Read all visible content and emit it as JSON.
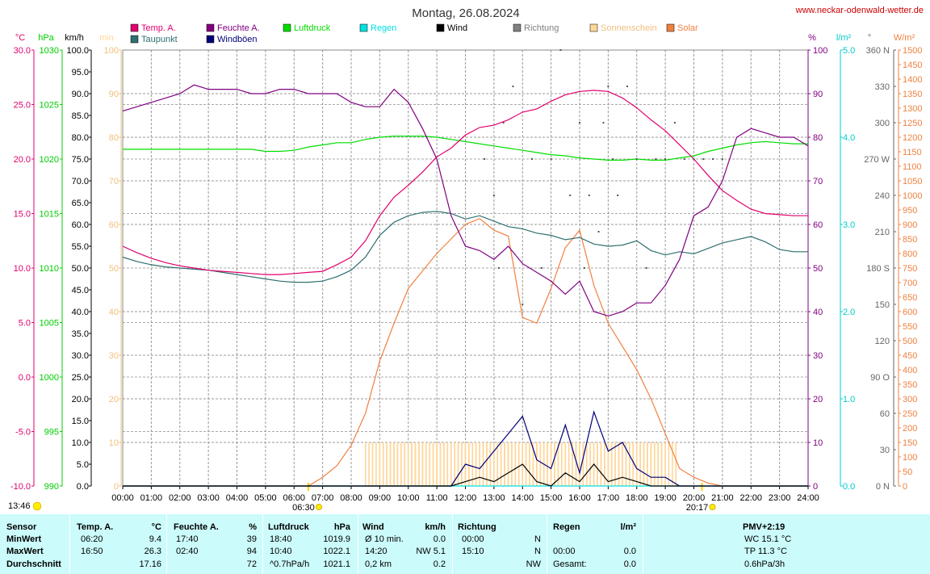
{
  "title": "Montag, 26.08.2024",
  "site": "www.neckar-odenwald-wetter.de",
  "timestamp": "13:46",
  "legend": [
    {
      "label": "Temp. A.",
      "color": "#e0006e"
    },
    {
      "label": "Taupunkt",
      "color": "#2e6f6f"
    },
    {
      "label": "Feuchte A.",
      "color": "#800080"
    },
    {
      "label": "Windböen",
      "color": "#00007a"
    },
    {
      "label": "Luftdruck",
      "color": "#00dd00"
    },
    {
      "label": "Regen",
      "color": "#00e0e0"
    },
    {
      "label": "Wind",
      "color": "#000000"
    },
    {
      "label": "Richtung",
      "color": "#808080"
    },
    {
      "label": "Sonnenschein",
      "color": "#ffd699"
    },
    {
      "label": "Solar",
      "color": "#f08040"
    }
  ],
  "axis_units": {
    "temp": "°C",
    "pressure": "hPa",
    "wind": "km/h",
    "sun": "min",
    "humidity": "%",
    "rain": "l/m²",
    "direction": "°",
    "solar": "W/m²"
  },
  "sunrise": "06:30",
  "sunset": "20:17",
  "chart_data": {
    "type": "line",
    "x": [
      "00:00",
      "00:30",
      "01:00",
      "01:30",
      "02:00",
      "02:30",
      "03:00",
      "03:30",
      "04:00",
      "04:30",
      "05:00",
      "05:30",
      "06:00",
      "06:30",
      "07:00",
      "07:30",
      "08:00",
      "08:30",
      "09:00",
      "09:30",
      "10:00",
      "10:30",
      "11:00",
      "11:30",
      "12:00",
      "12:30",
      "13:00",
      "13:30",
      "14:00",
      "14:30",
      "15:00",
      "15:30",
      "16:00",
      "16:30",
      "17:00",
      "17:30",
      "18:00",
      "18:30",
      "19:00",
      "19:30",
      "20:00",
      "20:30",
      "21:00",
      "21:30",
      "22:00",
      "22:30",
      "23:00",
      "23:30",
      "24:00"
    ],
    "xlabels": [
      "00:00",
      "01:00",
      "02:00",
      "03:00",
      "04:00",
      "05:00",
      "06:00",
      "07:00",
      "08:00",
      "09:00",
      "10:00",
      "11:00",
      "12:00",
      "13:00",
      "14:00",
      "15:00",
      "16:00",
      "17:00",
      "18:00",
      "19:00",
      "20:00",
      "21:00",
      "22:00",
      "23:00",
      "24:00"
    ],
    "axes": {
      "temp": {
        "label": "°C",
        "min": -10,
        "max": 30,
        "ticks": [
          "30.0",
          "25.0",
          "20.0",
          "15.0",
          "10.0",
          "5.0",
          "0.0",
          "-5.0",
          "-10.0"
        ]
      },
      "pressure": {
        "label": "hPa",
        "min": 990,
        "max": 1030,
        "ticks": [
          "1030",
          "1025",
          "1020",
          "1015",
          "1010",
          "1005",
          "1000",
          "995",
          "990"
        ]
      },
      "wind": {
        "label": "km/h",
        "min": 0,
        "max": 100,
        "ticks": [
          "100.0",
          "95.0",
          "90.0",
          "85.0",
          "80.0",
          "75.0",
          "70.0",
          "65.0",
          "60.0",
          "55.0",
          "50.0",
          "45.0",
          "40.0",
          "35.0",
          "30.0",
          "25.0",
          "20.0",
          "15.0",
          "10.0",
          "5.0",
          "0.0"
        ]
      },
      "sun": {
        "label": "min",
        "min": 0,
        "max": 100,
        "ticks": [
          "100",
          "90",
          "80",
          "70",
          "60",
          "50",
          "40",
          "30",
          "20",
          "10",
          "0"
        ]
      },
      "humidity": {
        "label": "%",
        "min": 0,
        "max": 100,
        "ticks": [
          "100",
          "90",
          "80",
          "70",
          "60",
          "50",
          "40",
          "30",
          "20",
          "10",
          "0"
        ]
      },
      "rain": {
        "label": "l/m²",
        "min": 0,
        "max": 5,
        "ticks": [
          "5.0",
          "4.0",
          "3.0",
          "2.0",
          "1.0",
          "0.0"
        ]
      },
      "direction": {
        "label": "°",
        "min": 0,
        "max": 360,
        "ticks": [
          "360 N",
          "330",
          "300",
          "270 W",
          "240",
          "210",
          "180 S",
          "150",
          "120",
          "90 O",
          "60",
          "30",
          "0 N"
        ]
      },
      "solar": {
        "label": "W/m²",
        "min": 0,
        "max": 1500,
        "ticks": [
          "1500",
          "1450",
          "1400",
          "1350",
          "1300",
          "1250",
          "1200",
          "1150",
          "1100",
          "1050",
          "1000",
          "950",
          "900",
          "850",
          "800",
          "750",
          "700",
          "650",
          "600",
          "550",
          "500",
          "450",
          "400",
          "350",
          "300",
          "250",
          "200",
          "150",
          "100",
          "50",
          "0"
        ]
      }
    },
    "series": [
      {
        "name": "Temp. A.",
        "axis": "temp",
        "values": [
          12.0,
          11.4,
          10.9,
          10.5,
          10.2,
          10.0,
          9.8,
          9.7,
          9.6,
          9.5,
          9.4,
          9.4,
          9.5,
          9.6,
          9.7,
          10.3,
          11.0,
          12.5,
          14.8,
          16.5,
          17.6,
          18.8,
          20.2,
          21.0,
          22.2,
          22.9,
          23.1,
          23.6,
          24.3,
          24.6,
          25.3,
          25.9,
          26.2,
          26.3,
          26.2,
          25.6,
          24.7,
          23.6,
          22.6,
          21.3,
          20.0,
          18.5,
          17.1,
          16.2,
          15.4,
          15.0,
          14.9,
          14.8,
          14.8
        ]
      },
      {
        "name": "Taupunkt",
        "axis": "temp",
        "values": [
          11.0,
          10.6,
          10.3,
          10.1,
          10.0,
          9.9,
          9.8,
          9.6,
          9.4,
          9.2,
          9.0,
          8.8,
          8.7,
          8.7,
          8.8,
          9.2,
          9.8,
          11.0,
          13.0,
          14.2,
          14.8,
          15.1,
          15.2,
          15.0,
          14.5,
          14.8,
          14.3,
          13.8,
          13.6,
          13.2,
          13.0,
          12.6,
          12.8,
          12.2,
          12.0,
          12.1,
          12.5,
          11.6,
          11.2,
          11.5,
          11.3,
          11.8,
          12.3,
          12.6,
          12.9,
          12.4,
          11.7,
          11.5,
          11.5
        ]
      },
      {
        "name": "Feuchte A.",
        "axis": "humidity",
        "values": [
          86,
          87,
          88,
          89,
          90,
          92,
          91,
          91,
          91,
          90,
          90,
          91,
          91,
          90,
          90,
          90,
          88,
          87,
          87,
          91,
          88,
          82,
          75,
          62,
          55,
          54,
          52,
          55,
          51,
          49,
          47,
          44,
          47,
          40,
          39,
          40,
          42,
          42,
          46,
          52,
          62,
          64,
          70,
          80,
          82,
          81,
          80,
          80,
          78
        ]
      },
      {
        "name": "Luftdruck",
        "axis": "pressure",
        "values": [
          1020.9,
          1020.9,
          1020.9,
          1020.9,
          1020.9,
          1020.9,
          1020.9,
          1020.9,
          1020.9,
          1020.9,
          1020.7,
          1020.7,
          1020.8,
          1021.1,
          1021.3,
          1021.5,
          1021.5,
          1021.8,
          1022.0,
          1022.1,
          1022.1,
          1022.1,
          1022.0,
          1021.8,
          1021.6,
          1021.4,
          1021.2,
          1021.0,
          1020.8,
          1020.6,
          1020.4,
          1020.3,
          1020.1,
          1020.0,
          1019.9,
          1019.9,
          1020.0,
          1019.9,
          1019.9,
          1020.1,
          1020.3,
          1020.7,
          1021.0,
          1021.3,
          1021.5,
          1021.6,
          1021.5,
          1021.4,
          1021.4
        ]
      },
      {
        "name": "Solar",
        "axis": "solar",
        "values": [
          0,
          0,
          0,
          0,
          0,
          0,
          0,
          0,
          0,
          0,
          0,
          0,
          0,
          0,
          30,
          70,
          140,
          250,
          430,
          560,
          680,
          740,
          800,
          850,
          900,
          920,
          880,
          860,
          580,
          560,
          680,
          820,
          880,
          690,
          560,
          480,
          400,
          300,
          180,
          60,
          30,
          10,
          0,
          0,
          0,
          0,
          0,
          0,
          0
        ]
      },
      {
        "name": "Windböen",
        "axis": "wind",
        "values": [
          0,
          0,
          0,
          0,
          0,
          0,
          0,
          0,
          0,
          0,
          0,
          0,
          0,
          0,
          0,
          0,
          0,
          0,
          0,
          0,
          0,
          0,
          0,
          0,
          5,
          4,
          8,
          12,
          16,
          6,
          4,
          14,
          3,
          17,
          8,
          10,
          4,
          2,
          2,
          0,
          0,
          0,
          0,
          0,
          0,
          0,
          0,
          0,
          0
        ]
      },
      {
        "name": "Wind",
        "axis": "wind",
        "values": [
          0,
          0,
          0,
          0,
          0,
          0,
          0,
          0,
          0,
          0,
          0,
          0,
          0,
          0,
          0,
          0,
          0,
          0,
          0,
          0,
          0,
          0,
          0,
          0,
          1,
          2,
          1,
          3,
          5,
          1,
          0,
          3,
          1,
          5,
          1,
          2,
          1,
          0,
          0,
          0,
          0,
          0,
          0,
          0,
          0,
          0,
          0,
          0,
          0
        ]
      },
      {
        "name": "Sonnenschein",
        "axis": "sun",
        "values": [
          0,
          0,
          0,
          0,
          0,
          0,
          0,
          0,
          0,
          0,
          0,
          0,
          0,
          0,
          0,
          0,
          0,
          10,
          10,
          10,
          10,
          10,
          10,
          10,
          10,
          10,
          10,
          10,
          10,
          10,
          10,
          10,
          10,
          10,
          10,
          10,
          10,
          10,
          0,
          0,
          0,
          0,
          0,
          0,
          0,
          0,
          0,
          0,
          0
        ]
      },
      {
        "name": "Regen",
        "axis": "rain",
        "values": [
          0,
          0,
          0,
          0,
          0,
          0,
          0,
          0,
          0,
          0,
          0,
          0,
          0,
          0,
          0,
          0,
          0,
          0,
          0,
          0,
          0,
          0,
          0,
          0,
          0,
          0,
          0,
          0,
          0,
          0,
          0,
          0,
          0,
          0,
          0,
          0,
          0,
          0,
          0,
          0,
          0,
          0,
          0,
          0,
          0,
          0,
          0,
          0,
          0
        ]
      }
    ],
    "direction_points": {
      "axis": "direction",
      "x": [
        "12:40",
        "13:00",
        "13:10",
        "13:20",
        "13:40",
        "14:00",
        "14:20",
        "14:40",
        "15:00",
        "15:20",
        "15:40",
        "16:00",
        "16:10",
        "16:20",
        "16:40",
        "16:50",
        "17:00",
        "17:10",
        "17:20",
        "17:40",
        "18:00",
        "18:20",
        "18:40",
        "19:00",
        "19:20",
        "19:40",
        "20:00",
        "20:20",
        "20:40",
        "21:00"
      ],
      "values": [
        270,
        240,
        180,
        300,
        330,
        150,
        270,
        180,
        270,
        360,
        240,
        300,
        180,
        240,
        210,
        300,
        330,
        270,
        240,
        330,
        270,
        180,
        270,
        270,
        300,
        270,
        270,
        270,
        270,
        270
      ]
    },
    "grid": true,
    "legend_position": "top"
  },
  "table": {
    "headers": {
      "sensor": "Sensor",
      "temp": "Temp. A.",
      "temp_unit": "°C",
      "hum": "Feuchte A.",
      "hum_unit": "%",
      "press": "Luftdruck",
      "press_unit": "hPa",
      "wind": "Wind",
      "wind_unit": "km/h",
      "dir": "Richtung",
      "rain": "Regen",
      "rain_unit": "l/m²",
      "pmv": "PMV+2:19"
    },
    "rows": [
      {
        "label": "MinWert",
        "temp_time": "06:20",
        "temp_val": "9.4",
        "hum_time": "17:40",
        "hum_val": "39",
        "press_time": "18:40",
        "press_val": "1019.9",
        "wind_a": "Ø 10 min.",
        "wind_b": "0.0",
        "dir_a": "00:00",
        "dir_b": "N",
        "rain_a": "",
        "rain_b": "",
        "extra": "WC 15.1 °C"
      },
      {
        "label": "MaxWert",
        "temp_time": "16:50",
        "temp_val": "26.3",
        "hum_time": "02:40",
        "hum_val": "94",
        "press_time": "10:40",
        "press_val": "1022.1",
        "wind_a": "14:20",
        "wind_b": "NW 5.1",
        "dir_a": "15:10",
        "dir_b": "N",
        "rain_a": "00:00",
        "rain_b": "0.0",
        "extra": "TP 11.3 °C"
      },
      {
        "label": "Durchschnitt",
        "temp_time": "",
        "temp_val": "17.16",
        "hum_time": "",
        "hum_val": "72",
        "press_time": "^0.7hPa/h",
        "press_val": "1021.1",
        "wind_a": "0,2 km",
        "wind_b": "0.2",
        "dir_a": "",
        "dir_b": "NW",
        "rain_a": "Gesamt:",
        "rain_b": "0.0",
        "extra": "0.6hPa/3h"
      }
    ]
  }
}
